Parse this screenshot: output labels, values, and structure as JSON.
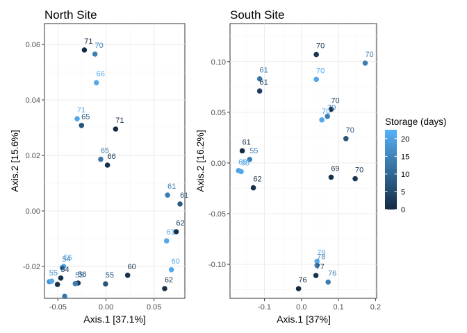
{
  "chart_data": [
    {
      "type": "scatter",
      "title": "North Site",
      "xlabel": "Axis.1   [37.1%]",
      "ylabel": "Axis.2   [15.6%]",
      "xlim": [
        -0.064,
        0.082
      ],
      "ylim": [
        -0.0315,
        0.0675
      ],
      "x_ticks": [
        -0.05,
        0.0,
        0.05
      ],
      "x_tick_labels": [
        "-0.05",
        "0.00",
        "0.05"
      ],
      "y_ticks": [
        -0.02,
        0.0,
        0.02,
        0.04,
        0.06
      ],
      "y_tick_labels": [
        "-0.02",
        "0.00",
        "0.02",
        "0.04",
        "0.06"
      ],
      "points": [
        {
          "x": -0.0225,
          "y": 0.058,
          "storage": 0,
          "label": "71"
        },
        {
          "x": -0.0115,
          "y": 0.0565,
          "storage": 14,
          "label": "70"
        },
        {
          "x": -0.01,
          "y": 0.0462,
          "storage": 21,
          "label": "66"
        },
        {
          "x": -0.03,
          "y": 0.0332,
          "storage": 21,
          "label": "71"
        },
        {
          "x": -0.0255,
          "y": 0.0308,
          "storage": 7,
          "label": "65"
        },
        {
          "x": 0.01,
          "y": 0.0295,
          "storage": 0,
          "label": "71"
        },
        {
          "x": -0.0055,
          "y": 0.0186,
          "storage": 13,
          "label": "65"
        },
        {
          "x": 0.0015,
          "y": 0.0165,
          "storage": 1,
          "label": "66"
        },
        {
          "x": 0.064,
          "y": 0.0057,
          "storage": 14,
          "label": "61"
        },
        {
          "x": 0.077,
          "y": 0.0025,
          "storage": 8,
          "label": "61"
        },
        {
          "x": 0.073,
          "y": -0.0075,
          "storage": 1,
          "label": "62"
        },
        {
          "x": 0.063,
          "y": -0.0108,
          "storage": 21,
          "label": "61"
        },
        {
          "x": 0.068,
          "y": -0.0212,
          "storage": 21,
          "label": "60"
        },
        {
          "x": 0.0225,
          "y": -0.0232,
          "storage": 1,
          "label": "60"
        },
        {
          "x": 0.061,
          "y": -0.028,
          "storage": 1,
          "label": "62"
        },
        {
          "x": -0.0005,
          "y": -0.0263,
          "storage": 7,
          "label": "55"
        },
        {
          "x": -0.044,
          "y": -0.02,
          "storage": 21,
          "label": "55"
        },
        {
          "x": -0.0455,
          "y": -0.0205,
          "storage": 14,
          "label": "54"
        },
        {
          "x": -0.047,
          "y": -0.0242,
          "storage": 1,
          "label": "54"
        },
        {
          "x": -0.029,
          "y": -0.026,
          "storage": 3,
          "label": "56"
        },
        {
          "x": -0.059,
          "y": -0.0255,
          "storage": 17,
          "label": "55"
        },
        {
          "x": -0.0565,
          "y": -0.0253,
          "storage": 21,
          "label": ""
        },
        {
          "x": -0.0505,
          "y": -0.0265,
          "storage": 1,
          "label": ""
        },
        {
          "x": -0.032,
          "y": -0.0262,
          "storage": 14,
          "label": "55"
        },
        {
          "x": -0.043,
          "y": -0.0308,
          "storage": 13,
          "label": ""
        }
      ]
    },
    {
      "type": "scatter",
      "title": "South Site",
      "xlabel": "Axis.1   [37%]",
      "ylabel": "Axis.2   [16.2%]",
      "xlim": [
        -0.193,
        0.203
      ],
      "ylim": [
        -0.1335,
        0.1375
      ],
      "x_ticks": [
        -0.1,
        0.0,
        0.1,
        0.2
      ],
      "x_tick_labels": [
        "-0.1",
        "0.0",
        "0.1",
        "0.2"
      ],
      "y_ticks": [
        -0.1,
        -0.05,
        0.0,
        0.05,
        0.1
      ],
      "y_tick_labels": [
        "-0.10",
        "-0.05",
        "0.00",
        "0.05",
        "0.10"
      ],
      "points": [
        {
          "x": 0.04,
          "y": 0.107,
          "storage": 2,
          "label": "70"
        },
        {
          "x": 0.172,
          "y": 0.0985,
          "storage": 14,
          "label": "70"
        },
        {
          "x": -0.113,
          "y": 0.083,
          "storage": 13,
          "label": "61"
        },
        {
          "x": 0.04,
          "y": 0.0825,
          "storage": 21,
          "label": "70"
        },
        {
          "x": -0.113,
          "y": 0.071,
          "storage": 3,
          "label": "61"
        },
        {
          "x": 0.08,
          "y": 0.053,
          "storage": 1,
          "label": "70"
        },
        {
          "x": 0.07,
          "y": 0.046,
          "storage": 14,
          "label": "70"
        },
        {
          "x": 0.055,
          "y": 0.0425,
          "storage": 21,
          "label": "70"
        },
        {
          "x": 0.12,
          "y": 0.024,
          "storage": 7,
          "label": "70"
        },
        {
          "x": -0.16,
          "y": 0.012,
          "storage": 0,
          "label": "61"
        },
        {
          "x": -0.14,
          "y": 0.0035,
          "storage": 14,
          "label": "55"
        },
        {
          "x": -0.17,
          "y": -0.0075,
          "storage": 20,
          "label": "65"
        },
        {
          "x": -0.163,
          "y": -0.0085,
          "storage": 21,
          "label": "65"
        },
        {
          "x": 0.08,
          "y": -0.014,
          "storage": 1,
          "label": "69"
        },
        {
          "x": 0.145,
          "y": -0.0155,
          "storage": 2,
          "label": "70"
        },
        {
          "x": -0.13,
          "y": -0.0245,
          "storage": 1,
          "label": "62"
        },
        {
          "x": 0.042,
          "y": -0.097,
          "storage": 21,
          "label": "79"
        },
        {
          "x": 0.042,
          "y": -0.101,
          "storage": 14,
          "label": "78"
        },
        {
          "x": 0.039,
          "y": -0.111,
          "storage": 1,
          "label": "77"
        },
        {
          "x": 0.072,
          "y": -0.1175,
          "storage": 14,
          "label": "76"
        },
        {
          "x": -0.008,
          "y": -0.124,
          "storage": 0,
          "label": "76"
        }
      ]
    }
  ],
  "legend": {
    "title": "Storage (days)",
    "min": 0,
    "max": 22.5,
    "breaks": [
      0,
      5,
      10,
      15,
      20
    ],
    "break_labels": [
      "0",
      "5",
      "10",
      "15",
      "20"
    ],
    "low_color": "#132B43",
    "high_color": "#56B1F7",
    "placement": "right"
  }
}
